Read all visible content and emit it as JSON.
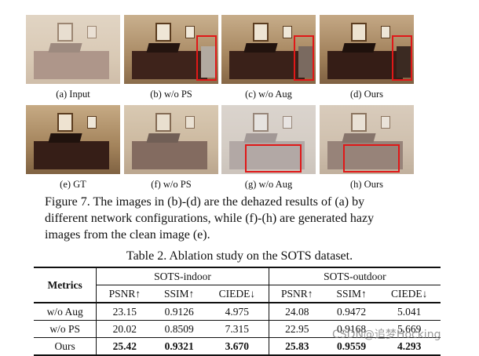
{
  "figure": {
    "panels": [
      {
        "caption": "(a) Input",
        "hazy": true,
        "box": false
      },
      {
        "caption": "(b) w/o PS",
        "hazy": false,
        "box": true
      },
      {
        "caption": "(c) w/o Aug",
        "hazy": false,
        "box": true
      },
      {
        "caption": "(d) Ours",
        "hazy": false,
        "box": true
      },
      {
        "caption": "(e) GT",
        "hazy": false,
        "box": false
      },
      {
        "caption": "(f) w/o PS",
        "hazy": true,
        "box": false
      },
      {
        "caption": "(g) w/o Aug",
        "hazy": true,
        "box": true
      },
      {
        "caption": "(h) Ours",
        "hazy": true,
        "box": true
      }
    ],
    "caption_lines": [
      "Figure 7. The images in (b)-(d) are the dehazed results of (a) by",
      "different network configurations, while (f)-(h) are generated hazy",
      "images from the clean image (e)."
    ],
    "box_color": "#e01818"
  },
  "table": {
    "caption": "Table 2. Ablation study on the SOTS dataset.",
    "metrics_label": "Metrics",
    "groups": [
      "SOTS-indoor",
      "SOTS-outdoor"
    ],
    "subheaders": [
      "PSNR↑",
      "SSIM↑",
      "CIEDE↓",
      "PSNR↑",
      "SSIM↑",
      "CIEDE↓"
    ],
    "rows": [
      {
        "name": "w/o Aug",
        "values": [
          "23.15",
          "0.9126",
          "4.975",
          "24.08",
          "0.9472",
          "5.041"
        ],
        "bold": false
      },
      {
        "name": "w/o PS",
        "values": [
          "20.02",
          "0.8509",
          "7.315",
          "22.95",
          "0.9168",
          "5.669"
        ],
        "bold": false
      },
      {
        "name": "Ours",
        "values": [
          "25.42",
          "0.9321",
          "3.670",
          "25.83",
          "0.9559",
          "4.293"
        ],
        "bold": true
      }
    ]
  },
  "watermark": "CSDN@追梦Hocking"
}
